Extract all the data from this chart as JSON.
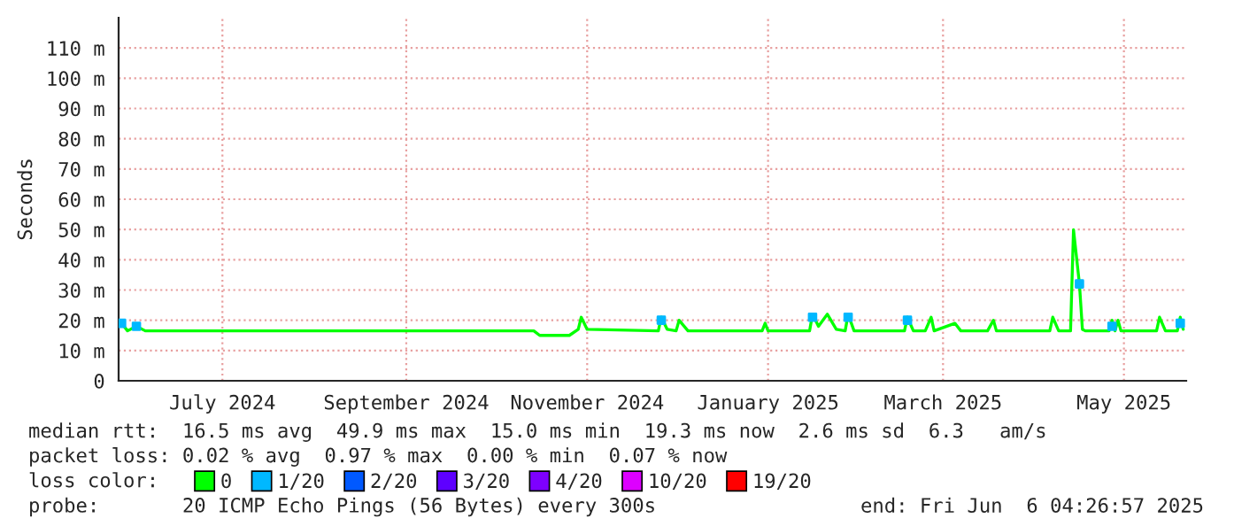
{
  "chart_data": {
    "type": "line",
    "ylabel": "Seconds",
    "legend_title": "loss color:",
    "legend": "bottom",
    "grid": true,
    "line_style": "solid",
    "marker": "none",
    "xlim": [
      "2024-06-11",
      "2025-06-06"
    ],
    "xticks": [
      {
        "value": "2024-07-16",
        "label": "July 2024"
      },
      {
        "value": "2024-09-16",
        "label": "September 2024"
      },
      {
        "value": "2024-11-16",
        "label": "November 2024"
      },
      {
        "value": "2025-01-16",
        "label": "January 2025"
      },
      {
        "value": "2025-03-16",
        "label": "March 2025"
      },
      {
        "value": "2025-05-16",
        "label": "May 2025"
      }
    ],
    "ylim": [
      0,
      120
    ],
    "yticks": [
      0,
      {
        "value": 10,
        "label": "10 m"
      },
      {
        "value": 20,
        "label": "20 m"
      },
      {
        "value": 30,
        "label": "30 m"
      },
      {
        "value": 40,
        "label": "40 m"
      },
      {
        "value": 50,
        "label": "50 m"
      },
      {
        "value": 60,
        "label": "60 m"
      },
      {
        "value": 70,
        "label": "70 m"
      },
      {
        "value": 80,
        "label": "80 m"
      },
      {
        "value": 90,
        "label": "90 m"
      },
      {
        "value": 100,
        "label": "100 m"
      },
      {
        "value": 110,
        "label": "110 m"
      }
    ],
    "series": [
      {
        "name": "0",
        "color": "#00ff00",
        "x": [
          "2024-06-12",
          "2024-06-14",
          "2024-06-17",
          "2024-06-20",
          "2024-10-29",
          "2024-10-31",
          "2024-11-10",
          "2024-11-13",
          "2024-11-14",
          "2024-11-16",
          "2024-12-10",
          "2024-12-11",
          "2024-12-13",
          "2024-12-16",
          "2024-12-17",
          "2024-12-20",
          "2025-01-14",
          "2025-01-15",
          "2025-01-16",
          "2025-01-30",
          "2025-01-31",
          "2025-02-02",
          "2025-02-05",
          "2025-02-08",
          "2025-02-11",
          "2025-02-12",
          "2025-02-14",
          "2025-03-03",
          "2025-03-04",
          "2025-03-06",
          "2025-03-10",
          "2025-03-12",
          "2025-03-13",
          "2025-03-20",
          "2025-03-22",
          "2025-03-31",
          "2025-04-02",
          "2025-04-03",
          "2025-04-21",
          "2025-04-22",
          "2025-04-24",
          "2025-04-28",
          "2025-04-29",
          "2025-05-01",
          "2025-05-02",
          "2025-05-03",
          "2025-05-11",
          "2025-05-12",
          "2025-05-13",
          "2025-05-14",
          "2025-05-15",
          "2025-05-27",
          "2025-05-28",
          "2025-05-30",
          "2025-06-03",
          "2025-06-04",
          "2025-06-05"
        ],
        "values": [
          19,
          16.5,
          18,
          16.5,
          16.5,
          15,
          15,
          17,
          21,
          17,
          16.5,
          21,
          17,
          16.5,
          20,
          16.5,
          16.5,
          19,
          16.5,
          16.5,
          22,
          18,
          22,
          17,
          16.5,
          22,
          16.5,
          16.5,
          21,
          16.5,
          16.5,
          21,
          16.5,
          19,
          16.5,
          16.5,
          20,
          16.5,
          16.5,
          21,
          16.5,
          16.5,
          49.9,
          32,
          17,
          16.5,
          16.5,
          20,
          16.5,
          20,
          16.5,
          16.5,
          21,
          16.5,
          16.5,
          21,
          17
        ]
      },
      {
        "name": "1/20",
        "color": "#00b8ff",
        "type": "scatter",
        "marker": "square",
        "x": [
          "2024-06-12",
          "2024-06-17",
          "2024-12-11",
          "2025-01-31",
          "2025-02-12",
          "2025-03-04",
          "2025-05-01",
          "2025-05-12",
          "2025-06-04"
        ],
        "values": [
          19,
          18,
          20,
          21,
          21,
          20,
          32,
          18,
          19
        ]
      },
      {
        "name": "2/20",
        "color": "#0059ff",
        "type": "scatter"
      },
      {
        "name": "3/20",
        "color": "#5e00ff",
        "type": "scatter"
      },
      {
        "name": "4/20",
        "color": "#7e00ff",
        "type": "scatter"
      },
      {
        "name": "10/20",
        "color": "#dd00ff",
        "type": "scatter"
      },
      {
        "name": "19/20",
        "color": "#ff0000",
        "type": "scatter"
      }
    ],
    "annotations": [
      "median rtt:  16.5 ms avg  49.9 ms max  15.0 ms min  19.3 ms now  2.6 ms sd  6.3   am/s",
      "packet loss: 0.02 % avg  0.97 % max  0.00 % min  0.07 % now",
      "probe:       20 ICMP Echo Pings (56 Bytes) every 300s",
      "end: Fri Jun  6 04:26:57 2025"
    ]
  }
}
